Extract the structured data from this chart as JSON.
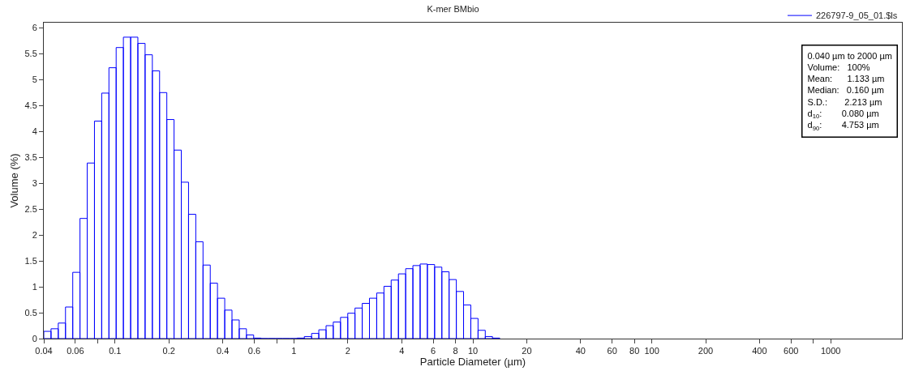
{
  "chart_data": {
    "type": "histogram",
    "title": "K-mer BMbio",
    "xlabel": "Particle Diameter (µm)",
    "ylabel": "Volume (%)",
    "bins": [
      0.04,
      0.0439,
      0.04819,
      0.05289,
      0.05806,
      0.06372,
      0.06994,
      0.07677,
      0.08426,
      0.09248,
      0.1015,
      0.1114,
      0.1223,
      0.1342,
      0.1473,
      0.1617,
      0.1775,
      0.1948,
      0.2138,
      0.2347,
      0.2576,
      0.2828,
      0.3104,
      0.3407,
      0.3739,
      0.4104,
      0.4505,
      0.4945,
      0.5427,
      0.5957,
      0.6539,
      0.7177,
      0.7878,
      0.8646,
      0.949,
      1.042,
      1.143,
      1.255,
      1.377,
      1.512,
      1.659,
      1.821,
      1.999,
      2.194,
      2.408,
      2.643,
      2.901,
      3.185,
      3.495,
      3.837,
      4.211,
      4.622,
      5.073,
      5.569,
      6.112,
      6.709,
      7.364,
      8.082,
      8.871,
      9.737,
      10.69,
      11.73,
      12.87,
      14.13
    ],
    "series": [
      {
        "name": "226797-9_05_01.$ls",
        "color": "#0000ff",
        "values": [
          0.14,
          0.19,
          0.3,
          0.61,
          1.28,
          2.32,
          3.39,
          4.2,
          4.74,
          5.23,
          5.62,
          5.82,
          5.82,
          5.7,
          5.48,
          5.17,
          4.75,
          4.23,
          3.64,
          3.02,
          2.4,
          1.87,
          1.42,
          1.07,
          0.78,
          0.55,
          0.36,
          0.19,
          0.07,
          0.01,
          0,
          0,
          0,
          0,
          0,
          0.01,
          0.04,
          0.1,
          0.17,
          0.25,
          0.32,
          0.41,
          0.49,
          0.59,
          0.68,
          0.78,
          0.88,
          1.01,
          1.13,
          1.25,
          1.35,
          1.41,
          1.44,
          1.43,
          1.38,
          1.29,
          1.14,
          0.91,
          0.65,
          0.39,
          0.16,
          0.04,
          0.01
        ]
      }
    ],
    "log": "x",
    "legend": "top right",
    "xlim": [
      0.04,
      2500
    ],
    "ylim": [
      0,
      6.1
    ],
    "xticks": [
      0.04,
      0.06,
      {
        "value": 0.08,
        "label": null
      },
      0.1,
      0.2,
      0.4,
      0.6,
      {
        "value": 0.8,
        "label": null
      },
      1,
      2,
      4,
      6,
      8,
      10,
      20,
      40,
      60,
      80,
      100,
      200,
      400,
      600,
      {
        "value": 800,
        "label": null
      },
      1000
    ],
    "yticks": [
      0,
      0.5,
      1,
      1.5,
      2,
      2.5,
      3,
      3.5,
      4,
      4.5,
      5,
      5.5,
      6
    ],
    "annotations": [
      "0.040 µm to 2000 µm",
      "Volume:   100%",
      "Mean:      1.133 µm",
      "Median:   0.160 µm",
      "S.D.:       2.213 µm",
      "d$_{10}$:        0.080 µm",
      "d$_{90}$:        4.753 µm"
    ]
  }
}
